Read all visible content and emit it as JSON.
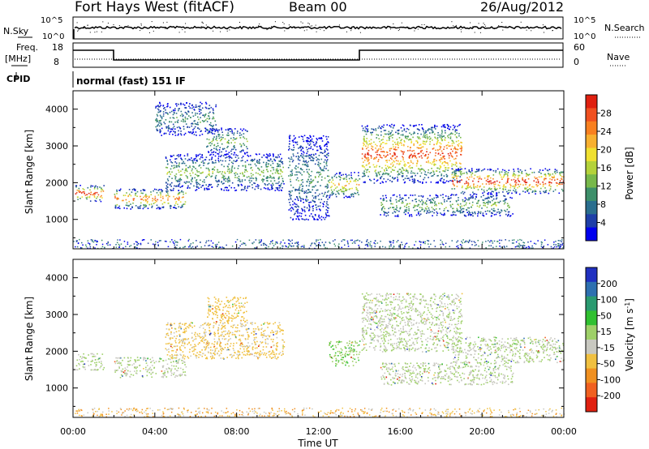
{
  "header": {
    "title": "Fort Hays West (fitACF)",
    "beam": "Beam 00",
    "date": "26/Aug/2012"
  },
  "strip": {
    "nsky_label": "N.Sky",
    "nsearch_label": "N.Search",
    "nsky_ticks": [
      "10^5",
      "10^0"
    ],
    "nsearch_ticks": [
      "10^5",
      "10^0"
    ],
    "freq_label": "Freq.",
    "freq_unit": "[MHz]",
    "freq_ticks": [
      "18",
      "8"
    ],
    "nave_label": "Nave",
    "nave_ticks": [
      "60",
      "0"
    ],
    "cpid_label": "CPID",
    "cpid_text": "normal (fast) 151 IF"
  },
  "chart_data": [
    {
      "type": "heatmap",
      "name": "power-panel",
      "ylabel": "Slant Range [km]",
      "xlabel": "",
      "ylim": [
        200,
        4500
      ],
      "xlim": [
        0,
        24
      ],
      "yticks": [
        "1000",
        "2000",
        "3000",
        "4000"
      ],
      "colorbar": {
        "label": "Power [dB]",
        "ticks": [
          "4",
          "8",
          "12",
          "16",
          "20",
          "24",
          "28"
        ],
        "colors": [
          "#0000ee",
          "#1e3fa8",
          "#2a6e8e",
          "#3d8f6a",
          "#77b84a",
          "#b4d23a",
          "#f0e030",
          "#f8b030",
          "#f88020",
          "#f05020",
          "#e02010"
        ]
      },
      "bands": [
        {
          "t0": 0.1,
          "t1": 1.5,
          "r0": 1500,
          "r1": 1950,
          "power": 24
        },
        {
          "t0": 2.0,
          "t1": 5.5,
          "r0": 1300,
          "r1": 1850,
          "power": 20
        },
        {
          "t0": 4.5,
          "t1": 10.3,
          "r0": 1800,
          "r1": 2800,
          "power": 8
        },
        {
          "t0": 6.5,
          "t1": 8.5,
          "r0": 2800,
          "r1": 3500,
          "power": 8
        },
        {
          "t0": 4.0,
          "t1": 7.0,
          "r0": 3300,
          "r1": 4200,
          "power": 4
        },
        {
          "t0": 10.5,
          "t1": 12.5,
          "r0": 1000,
          "r1": 3300,
          "power": 4
        },
        {
          "t0": 12.5,
          "t1": 14.0,
          "r0": 1600,
          "r1": 2300,
          "power": 16
        },
        {
          "t0": 14.1,
          "t1": 19.0,
          "r0": 2000,
          "r1": 3600,
          "power": 22
        },
        {
          "t0": 18.5,
          "t1": 24.0,
          "r0": 1700,
          "r1": 2400,
          "power": 24
        },
        {
          "t0": 15.0,
          "t1": 21.5,
          "r0": 1100,
          "r1": 1700,
          "power": 8
        }
      ]
    },
    {
      "type": "heatmap",
      "name": "velocity-panel",
      "ylabel": "Slant Range [km]",
      "xlabel": "Time UT",
      "ylim": [
        200,
        4500
      ],
      "xlim": [
        0,
        24
      ],
      "yticks": [
        "1000",
        "2000",
        "3000",
        "4000"
      ],
      "xticks": [
        "00:00",
        "04:00",
        "08:00",
        "12:00",
        "16:00",
        "20:00",
        "00:00"
      ],
      "colorbar": {
        "label": "Velocity [m s-1]",
        "label_main": "Velocity [m s",
        "label_sup": "-1",
        "label_end": "]",
        "ticks": [
          "200",
          "100",
          "50",
          "15",
          "-15",
          "-50",
          "-100",
          "-200"
        ],
        "colors": [
          "#2030c0",
          "#2e70b0",
          "#2a9a70",
          "#30c030",
          "#9ed068",
          "#c8c8c0",
          "#f0c040",
          "#f09020",
          "#f06020",
          "#e02010"
        ]
      },
      "bands": [
        {
          "t0": 0.1,
          "t1": 1.5,
          "r0": 1500,
          "r1": 1950,
          "velocity": 0
        },
        {
          "t0": 2.0,
          "t1": 5.5,
          "r0": 1300,
          "r1": 1850,
          "velocity": 0
        },
        {
          "t0": 4.5,
          "t1": 10.3,
          "r0": 1800,
          "r1": 2800,
          "velocity": -60
        },
        {
          "t0": 6.5,
          "t1": 8.5,
          "r0": 2800,
          "r1": 3500,
          "velocity": -80
        },
        {
          "t0": 12.5,
          "t1": 14.0,
          "r0": 1600,
          "r1": 2300,
          "velocity": 40
        },
        {
          "t0": 14.1,
          "t1": 19.0,
          "r0": 2000,
          "r1": 3600,
          "velocity": 0
        },
        {
          "t0": 18.5,
          "t1": 24.0,
          "r0": 1700,
          "r1": 2400,
          "velocity": 0
        },
        {
          "t0": 15.0,
          "t1": 21.5,
          "r0": 1100,
          "r1": 1700,
          "velocity": 0
        }
      ]
    }
  ]
}
